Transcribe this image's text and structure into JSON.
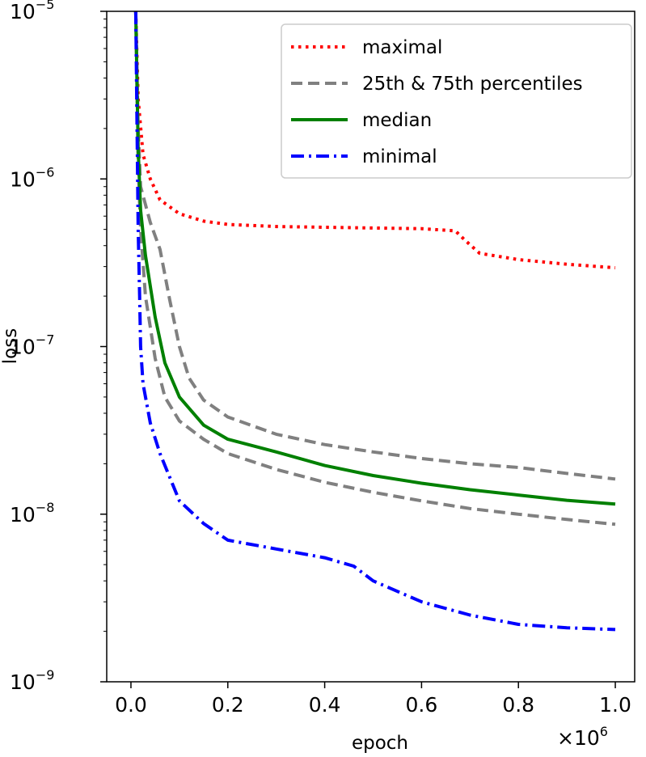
{
  "chart_data": {
    "type": "line",
    "title": "",
    "xlabel": "epoch",
    "ylabel": "loss",
    "x_multiplier": "×10",
    "x_multiplier_exp": "6",
    "xlim": [
      -0.05,
      1.04
    ],
    "ylim": [
      1e-09,
      1e-05
    ],
    "yscale": "log",
    "grid": false,
    "legend_position": "top-right",
    "x_ticks": [
      {
        "value": 0.0,
        "label": "0.0"
      },
      {
        "value": 0.2,
        "label": "0.2"
      },
      {
        "value": 0.4,
        "label": "0.4"
      },
      {
        "value": 0.6,
        "label": "0.6"
      },
      {
        "value": 0.8,
        "label": "0.8"
      },
      {
        "value": 1.0,
        "label": "1.0"
      }
    ],
    "y_ticks": [
      {
        "value": 1e-09,
        "base": "10",
        "exp": "−9"
      },
      {
        "value": 1e-08,
        "base": "10",
        "exp": "−8"
      },
      {
        "value": 1e-07,
        "base": "10",
        "exp": "−7"
      },
      {
        "value": 1e-06,
        "base": "10",
        "exp": "−6"
      },
      {
        "value": 1e-05,
        "base": "10",
        "exp": "−5"
      }
    ],
    "series": [
      {
        "name": "maximal",
        "color": "#ff0000",
        "style": "dotted",
        "points": [
          [
            0.01,
            1e-05
          ],
          [
            0.015,
            3e-06
          ],
          [
            0.025,
            1.4e-06
          ],
          [
            0.04,
            1e-06
          ],
          [
            0.06,
            7.5e-07
          ],
          [
            0.1,
            6.2e-07
          ],
          [
            0.15,
            5.6e-07
          ],
          [
            0.2,
            5.35e-07
          ],
          [
            0.3,
            5.2e-07
          ],
          [
            0.4,
            5.15e-07
          ],
          [
            0.5,
            5.1e-07
          ],
          [
            0.6,
            5.05e-07
          ],
          [
            0.67,
            4.9e-07
          ],
          [
            0.69,
            4.3e-07
          ],
          [
            0.72,
            3.6e-07
          ],
          [
            0.8,
            3.3e-07
          ],
          [
            0.9,
            3.1e-07
          ],
          [
            1.0,
            2.95e-07
          ]
        ]
      },
      {
        "name": "25th & 75th percentiles",
        "color": "#808080",
        "style": "dashed",
        "points": [
          [
            0.01,
            1e-05
          ],
          [
            0.015,
            2e-06
          ],
          [
            0.02,
            9e-07
          ],
          [
            0.04,
            5.5e-07
          ],
          [
            0.06,
            3.8e-07
          ],
          [
            0.08,
            1.9e-07
          ],
          [
            0.1,
            1e-07
          ],
          [
            0.12,
            6.5e-08
          ],
          [
            0.15,
            4.8e-08
          ],
          [
            0.2,
            3.8e-08
          ],
          [
            0.3,
            3e-08
          ],
          [
            0.4,
            2.6e-08
          ],
          [
            0.5,
            2.35e-08
          ],
          [
            0.6,
            2.15e-08
          ],
          [
            0.7,
            2e-08
          ],
          [
            0.8,
            1.9e-08
          ],
          [
            0.9,
            1.75e-08
          ],
          [
            1.0,
            1.62e-08
          ]
        ]
      },
      {
        "name": "25th percentile",
        "legend": false,
        "color": "#808080",
        "style": "dashed",
        "points": [
          [
            0.01,
            1e-05
          ],
          [
            0.015,
            1.2e-06
          ],
          [
            0.02,
            5e-07
          ],
          [
            0.03,
            2e-07
          ],
          [
            0.05,
            8.5e-08
          ],
          [
            0.07,
            5e-08
          ],
          [
            0.1,
            3.6e-08
          ],
          [
            0.15,
            2.8e-08
          ],
          [
            0.2,
            2.3e-08
          ],
          [
            0.3,
            1.85e-08
          ],
          [
            0.4,
            1.55e-08
          ],
          [
            0.5,
            1.35e-08
          ],
          [
            0.6,
            1.2e-08
          ],
          [
            0.7,
            1.08e-08
          ],
          [
            0.8,
            1e-08
          ],
          [
            0.9,
            9.3e-09
          ],
          [
            1.0,
            8.7e-09
          ]
        ]
      },
      {
        "name": "median",
        "color": "#008000",
        "style": "solid",
        "points": [
          [
            0.01,
            1e-05
          ],
          [
            0.015,
            1.5e-06
          ],
          [
            0.02,
            6.5e-07
          ],
          [
            0.03,
            3.5e-07
          ],
          [
            0.05,
            1.5e-07
          ],
          [
            0.07,
            8e-08
          ],
          [
            0.1,
            5e-08
          ],
          [
            0.15,
            3.4e-08
          ],
          [
            0.2,
            2.8e-08
          ],
          [
            0.3,
            2.35e-08
          ],
          [
            0.4,
            1.95e-08
          ],
          [
            0.5,
            1.7e-08
          ],
          [
            0.6,
            1.53e-08
          ],
          [
            0.7,
            1.4e-08
          ],
          [
            0.8,
            1.3e-08
          ],
          [
            0.9,
            1.21e-08
          ],
          [
            1.0,
            1.15e-08
          ]
        ]
      },
      {
        "name": "minimal",
        "color": "#0000ff",
        "style": "dashdot",
        "points": [
          [
            0.01,
            1e-05
          ],
          [
            0.012,
            3e-06
          ],
          [
            0.015,
            5e-07
          ],
          [
            0.018,
            2e-07
          ],
          [
            0.02,
            1e-07
          ],
          [
            0.025,
            6e-08
          ],
          [
            0.04,
            3.5e-08
          ],
          [
            0.06,
            2.3e-08
          ],
          [
            0.1,
            1.2e-08
          ],
          [
            0.15,
            8.8e-09
          ],
          [
            0.2,
            7e-09
          ],
          [
            0.3,
            6.2e-09
          ],
          [
            0.4,
            5.5e-09
          ],
          [
            0.46,
            4.9e-09
          ],
          [
            0.5,
            4e-09
          ],
          [
            0.6,
            3e-09
          ],
          [
            0.7,
            2.5e-09
          ],
          [
            0.8,
            2.2e-09
          ],
          [
            0.9,
            2.1e-09
          ],
          [
            1.0,
            2.05e-09
          ]
        ]
      }
    ]
  }
}
